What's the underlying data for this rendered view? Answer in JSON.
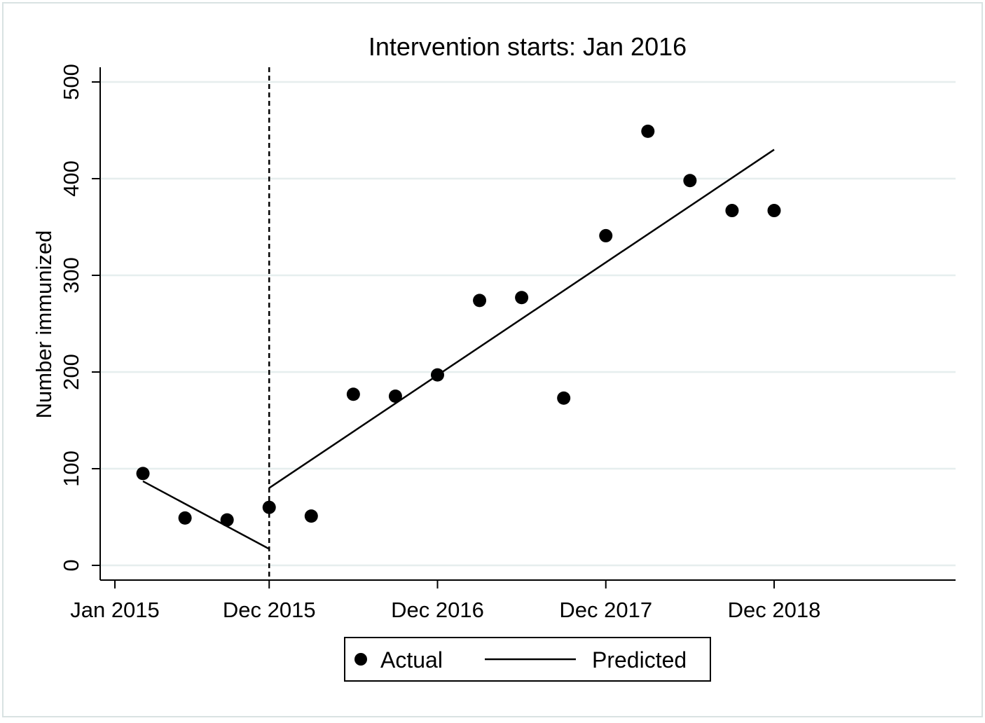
{
  "chart_data": {
    "type": "scatter",
    "title": "Intervention starts: Jan 2016",
    "xlabel": "",
    "ylabel": "Number immunized",
    "ylim": [
      0,
      500
    ],
    "yticks": [
      0,
      100,
      200,
      300,
      400,
      500
    ],
    "xlim": [
      "2014-12",
      "2020-02"
    ],
    "xticks": [
      {
        "x": "2015-01",
        "label": "Jan 2015"
      },
      {
        "x": "2015-12",
        "label": "Dec 2015"
      },
      {
        "x": "2016-12",
        "label": "Dec 2016"
      },
      {
        "x": "2017-12",
        "label": "Dec 2017"
      },
      {
        "x": "2018-12",
        "label": "Dec 2018"
      }
    ],
    "grid": true,
    "intervention_line_x": "2015-12",
    "legend": {
      "placement": "bottom",
      "entries": [
        {
          "label": "Actual",
          "marker": "dot"
        },
        {
          "label": "Predicted",
          "marker": "line"
        }
      ]
    },
    "series": [
      {
        "name": "Actual",
        "kind": "scatter",
        "points": [
          {
            "x": "2015-03",
            "y": 95
          },
          {
            "x": "2015-06",
            "y": 49
          },
          {
            "x": "2015-09",
            "y": 47
          },
          {
            "x": "2015-12",
            "y": 60
          },
          {
            "x": "2016-03",
            "y": 51
          },
          {
            "x": "2016-06",
            "y": 177
          },
          {
            "x": "2016-09",
            "y": 175
          },
          {
            "x": "2016-12",
            "y": 197
          },
          {
            "x": "2017-03",
            "y": 274
          },
          {
            "x": "2017-06",
            "y": 277
          },
          {
            "x": "2017-09",
            "y": 173
          },
          {
            "x": "2017-12",
            "y": 341
          },
          {
            "x": "2018-03",
            "y": 449
          },
          {
            "x": "2018-06",
            "y": 398
          },
          {
            "x": "2018-09",
            "y": 367
          },
          {
            "x": "2018-12",
            "y": 367
          }
        ]
      },
      {
        "name": "Predicted",
        "kind": "line",
        "segments": [
          [
            {
              "x": "2015-03",
              "y": 87
            },
            {
              "x": "2015-12",
              "y": 17
            }
          ],
          [
            {
              "x": "2015-12",
              "y": 80
            },
            {
              "x": "2018-12",
              "y": 430
            }
          ]
        ]
      }
    ],
    "colors": {
      "marks": "#000000",
      "grid": "#e6eeee",
      "background": "#ffffff",
      "outer_border": "#d9e2e2"
    }
  }
}
